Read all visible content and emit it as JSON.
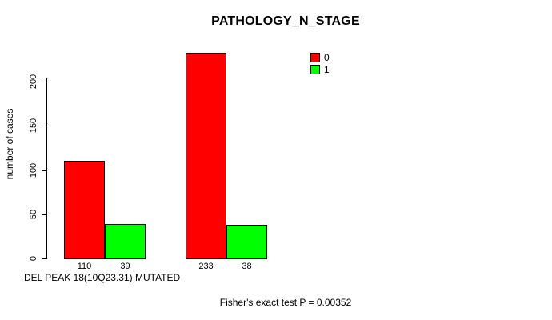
{
  "title": "PATHOLOGY_N_STAGE",
  "y_axis": {
    "label": "number of cases",
    "ticks": [
      0,
      50,
      100,
      150,
      200
    ]
  },
  "x_axis": {
    "label": "DEL PEAK 18(10Q23.31) MUTATED"
  },
  "legend": [
    {
      "label": "0",
      "color": "#ff0000"
    },
    {
      "label": "1",
      "color": "#00ff00"
    }
  ],
  "caption": "Fisher's exact test P = 0.00352",
  "chart_data": {
    "type": "bar",
    "title": "PATHOLOGY_N_STAGE",
    "xlabel": "DEL PEAK 18(10Q23.31) MUTATED",
    "ylabel": "number of cases",
    "ylim": [
      0,
      235
    ],
    "yticks": [
      0,
      50,
      100,
      150,
      200
    ],
    "categories": [
      "",
      ""
    ],
    "series": [
      {
        "name": "0",
        "color": "#ff0000",
        "values": [
          110,
          233
        ]
      },
      {
        "name": "1",
        "color": "#00ff00",
        "values": [
          39,
          38
        ]
      }
    ],
    "bar_value_labels": [
      [
        "110",
        "233"
      ],
      [
        "39",
        "38"
      ]
    ],
    "legend_position": "top-right",
    "grid": false,
    "annotation": "Fisher's exact test P = 0.00352"
  }
}
